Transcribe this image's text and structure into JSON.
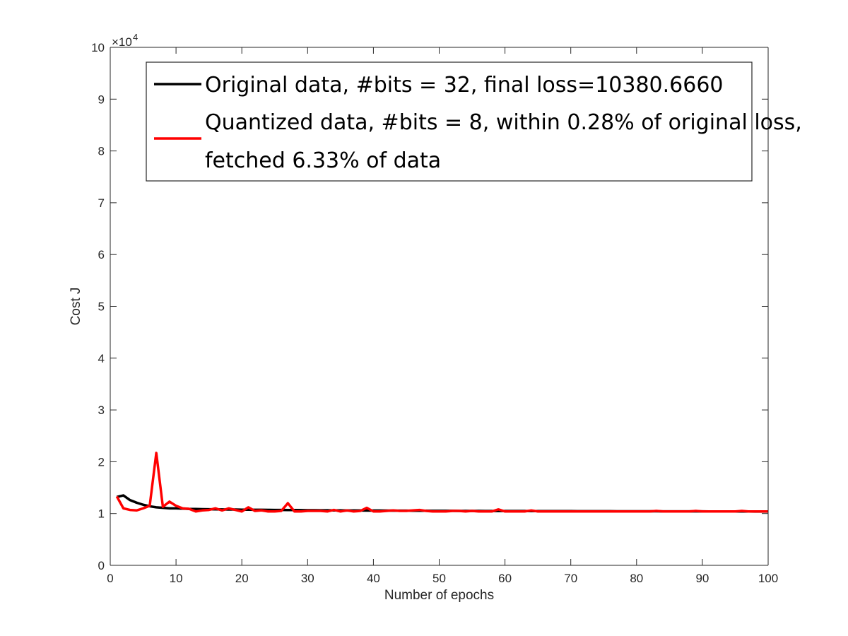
{
  "chart_data": {
    "type": "line",
    "title": "",
    "xlabel": "Number of epochs",
    "ylabel": "Cost J",
    "xlim": [
      0,
      100
    ],
    "ylim": [
      0,
      100000
    ],
    "xticks": [
      0,
      10,
      20,
      30,
      40,
      50,
      60,
      70,
      80,
      90,
      100
    ],
    "yticks": [
      0,
      1,
      2,
      3,
      4,
      5,
      6,
      7,
      8,
      9,
      10
    ],
    "y_multiplier_label": "×10",
    "y_multiplier_exponent": "4",
    "y_scale_factor": 10000,
    "grid": false,
    "legend_position": "top",
    "series": [
      {
        "name": "Original data, #bits = 32, final loss=10380.6660",
        "color": "#000000",
        "x": [
          1,
          2,
          3,
          4,
          5,
          6,
          7,
          8,
          9,
          10,
          11,
          12,
          13,
          14,
          15,
          16,
          17,
          18,
          19,
          20,
          21,
          22,
          23,
          24,
          25,
          26,
          27,
          28,
          29,
          30,
          31,
          32,
          33,
          34,
          35,
          36,
          37,
          38,
          39,
          40,
          41,
          42,
          43,
          44,
          45,
          46,
          47,
          48,
          49,
          50,
          51,
          52,
          53,
          54,
          55,
          56,
          57,
          58,
          59,
          60,
          61,
          62,
          63,
          64,
          65,
          66,
          67,
          68,
          69,
          70,
          71,
          72,
          73,
          74,
          75,
          76,
          77,
          78,
          79,
          80,
          81,
          82,
          83,
          84,
          85,
          86,
          87,
          88,
          89,
          90,
          91,
          92,
          93,
          94,
          95,
          96,
          97,
          98,
          99,
          100
        ],
        "y": [
          13200,
          13500,
          12600,
          12100,
          11700,
          11400,
          11200,
          11100,
          11000,
          11000,
          10950,
          10900,
          10880,
          10850,
          10830,
          10820,
          10800,
          10780,
          10770,
          10750,
          10740,
          10730,
          10720,
          10710,
          10700,
          10690,
          10680,
          10670,
          10660,
          10650,
          10640,
          10630,
          10620,
          10610,
          10600,
          10595,
          10590,
          10585,
          10580,
          10575,
          10570,
          10565,
          10560,
          10555,
          10550,
          10545,
          10540,
          10535,
          10530,
          10525,
          10520,
          10515,
          10510,
          10505,
          10500,
          10498,
          10495,
          10492,
          10490,
          10487,
          10485,
          10482,
          10480,
          10477,
          10475,
          10472,
          10470,
          10467,
          10465,
          10462,
          10460,
          10457,
          10455,
          10452,
          10450,
          10447,
          10445,
          10442,
          10440,
          10437,
          10435,
          10432,
          10430,
          10427,
          10425,
          10422,
          10420,
          10417,
          10415,
          10412,
          10410,
          10407,
          10405,
          10402,
          10400,
          10397,
          10394,
          10391,
          10386,
          10381
        ]
      },
      {
        "name": "Quantized data, #bits = 8, within 0.28% of original loss, fetched 6.33% of data",
        "color": "#ff0000",
        "x": [
          1,
          2,
          3,
          4,
          5,
          6,
          7,
          8,
          9,
          10,
          11,
          12,
          13,
          14,
          15,
          16,
          17,
          18,
          19,
          20,
          21,
          22,
          23,
          24,
          25,
          26,
          27,
          28,
          29,
          30,
          31,
          32,
          33,
          34,
          35,
          36,
          37,
          38,
          39,
          40,
          41,
          42,
          43,
          44,
          45,
          46,
          47,
          48,
          49,
          50,
          51,
          52,
          53,
          54,
          55,
          56,
          57,
          58,
          59,
          60,
          61,
          62,
          63,
          64,
          65,
          66,
          67,
          68,
          69,
          70,
          71,
          72,
          73,
          74,
          75,
          76,
          77,
          78,
          79,
          80,
          81,
          82,
          83,
          84,
          85,
          86,
          87,
          88,
          89,
          90,
          91,
          92,
          93,
          94,
          95,
          96,
          97,
          98,
          99,
          100
        ],
        "y": [
          13300,
          11000,
          10700,
          10600,
          11000,
          11500,
          21700,
          11300,
          12300,
          11500,
          11000,
          10900,
          10400,
          10600,
          10700,
          11000,
          10600,
          11000,
          10700,
          10400,
          11200,
          10500,
          10600,
          10400,
          10400,
          10500,
          12000,
          10400,
          10400,
          10500,
          10500,
          10500,
          10400,
          10700,
          10400,
          10600,
          10400,
          10500,
          11100,
          10400,
          10400,
          10500,
          10600,
          10500,
          10500,
          10600,
          10700,
          10500,
          10400,
          10400,
          10400,
          10500,
          10500,
          10400,
          10500,
          10400,
          10400,
          10400,
          10800,
          10400,
          10400,
          10400,
          10400,
          10600,
          10400,
          10400,
          10400,
          10400,
          10400,
          10400,
          10400,
          10400,
          10400,
          10400,
          10400,
          10400,
          10400,
          10400,
          10400,
          10400,
          10400,
          10400,
          10500,
          10400,
          10400,
          10400,
          10400,
          10400,
          10500,
          10400,
          10400,
          10400,
          10400,
          10400,
          10400,
          10500,
          10400,
          10400,
          10400,
          10400
        ]
      }
    ],
    "legend_lines": [
      [
        "Original data, #bits = 32, final loss=10380.6660"
      ],
      [
        "Quantized data, #bits = 8, within 0.28% of original loss,",
        " fetched 6.33% of data"
      ]
    ]
  }
}
